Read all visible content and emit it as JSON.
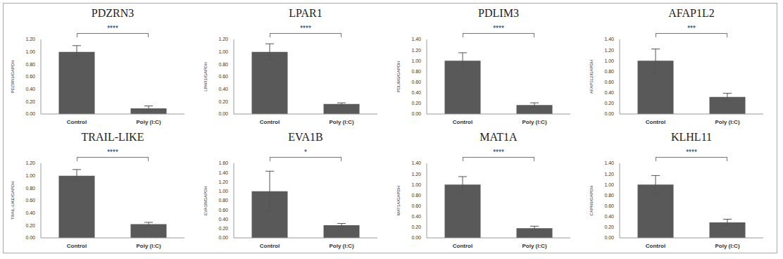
{
  "chart_data": [
    {
      "type": "bar",
      "title": "PDZRN3",
      "ylabel": "PDZRN3/GAPDH",
      "categories": [
        "Control",
        "Poly (I:C)"
      ],
      "values": [
        1.0,
        0.09
      ],
      "errors": [
        0.1,
        0.04
      ],
      "significance": "****",
      "color": "#595959",
      "ylim": [
        0,
        1.2
      ],
      "yticks": [
        {
          "value": 0,
          "label": "0.00"
        },
        {
          "value": 0.2,
          "label": "0.20"
        },
        {
          "value": 0.4,
          "label": "0.40"
        },
        {
          "value": 0.6,
          "label": "0.60"
        },
        {
          "value": 0.8,
          "label": "0.80"
        },
        {
          "value": 1.0,
          "label": "1.00"
        },
        {
          "value": 1.2,
          "label": "1.20"
        }
      ]
    },
    {
      "type": "bar",
      "title": "LPAR1",
      "ylabel": "LPAR1/GAPDH",
      "categories": [
        "Control",
        "Poly (I:C)"
      ],
      "values": [
        1.0,
        0.16
      ],
      "errors": [
        0.13,
        0.02
      ],
      "significance": "****",
      "color": "#595959",
      "ylim": [
        0,
        1.2
      ],
      "yticks": [
        {
          "value": 0,
          "label": "0.00"
        },
        {
          "value": 0.2,
          "label": "0.20"
        },
        {
          "value": 0.4,
          "label": "0.40"
        },
        {
          "value": 0.6,
          "label": "0.60"
        },
        {
          "value": 0.8,
          "label": "0.80"
        },
        {
          "value": 1.0,
          "label": "1.00"
        },
        {
          "value": 1.2,
          "label": "1.20"
        }
      ]
    },
    {
      "type": "bar",
      "title": "PDLIM3",
      "ylabel": "PDLIM3/GAPDH",
      "categories": [
        "Control",
        "Poly (I:C)"
      ],
      "values": [
        1.0,
        0.17
      ],
      "errors": [
        0.15,
        0.04
      ],
      "significance": "****",
      "color": "#595959",
      "ylim": [
        0,
        1.4
      ],
      "yticks": [
        {
          "value": 0,
          "label": "0.00"
        },
        {
          "value": 0.2,
          "label": "0.20"
        },
        {
          "value": 0.4,
          "label": "0.40"
        },
        {
          "value": 0.6,
          "label": "0.60"
        },
        {
          "value": 0.8,
          "label": "0.80"
        },
        {
          "value": 1.0,
          "label": "1.00"
        },
        {
          "value": 1.2,
          "label": "1.20"
        },
        {
          "value": 1.4,
          "label": "1.40"
        }
      ]
    },
    {
      "type": "bar",
      "title": "AFAP1L2",
      "ylabel": "AFAP1L2/GAPDH",
      "categories": [
        "Control",
        "Poly (I:C)"
      ],
      "values": [
        1.0,
        0.32
      ],
      "errors": [
        0.22,
        0.07
      ],
      "significance": "***",
      "color": "#595959",
      "ylim": [
        0,
        1.4
      ],
      "yticks": [
        {
          "value": 0,
          "label": "0.00"
        },
        {
          "value": 0.2,
          "label": "0.20"
        },
        {
          "value": 0.4,
          "label": "0.40"
        },
        {
          "value": 0.6,
          "label": "0.60"
        },
        {
          "value": 0.8,
          "label": "0.80"
        },
        {
          "value": 1.0,
          "label": "1.00"
        },
        {
          "value": 1.2,
          "label": "1.20"
        },
        {
          "value": 1.4,
          "label": "1.40"
        }
      ]
    },
    {
      "type": "bar",
      "title": "TRAIL-LIKE",
      "ylabel": "TRAIL-LIKE/GAPDH",
      "categories": [
        "Control",
        "Poly (I:C)"
      ],
      "values": [
        1.0,
        0.22
      ],
      "errors": [
        0.1,
        0.03
      ],
      "significance": "****",
      "color": "#595959",
      "ylim": [
        0,
        1.2
      ],
      "yticks": [
        {
          "value": 0,
          "label": "0.00"
        },
        {
          "value": 0.2,
          "label": "0.20"
        },
        {
          "value": 0.4,
          "label": "0.40"
        },
        {
          "value": 0.6,
          "label": "0.60"
        },
        {
          "value": 0.8,
          "label": "0.80"
        },
        {
          "value": 1.0,
          "label": "1.00"
        },
        {
          "value": 1.2,
          "label": "1.20"
        }
      ]
    },
    {
      "type": "bar",
      "title": "EVA1B",
      "ylabel": "EVA1B/GAPDH",
      "categories": [
        "Control",
        "Poly (I:C)"
      ],
      "values": [
        1.0,
        0.27
      ],
      "errors": [
        0.43,
        0.04
      ],
      "significance": "*",
      "color": "#595959",
      "ylim": [
        0,
        1.6
      ],
      "yticks": [
        {
          "value": 0,
          "label": "0.00"
        },
        {
          "value": 0.2,
          "label": "0.20"
        },
        {
          "value": 0.4,
          "label": "0.40"
        },
        {
          "value": 0.6,
          "label": "0.60"
        },
        {
          "value": 0.8,
          "label": "0.80"
        },
        {
          "value": 1.0,
          "label": "1.00"
        },
        {
          "value": 1.2,
          "label": "1.20"
        },
        {
          "value": 1.4,
          "label": "1.40"
        },
        {
          "value": 1.6,
          "label": "1.60"
        }
      ]
    },
    {
      "type": "bar",
      "title": "MAT1A",
      "ylabel": "MAT1A/GAPDH",
      "categories": [
        "Control",
        "Poly (I:C)"
      ],
      "values": [
        1.0,
        0.18
      ],
      "errors": [
        0.15,
        0.04
      ],
      "significance": "****",
      "color": "#595959",
      "ylim": [
        0,
        1.4
      ],
      "yticks": [
        {
          "value": 0,
          "label": "0.00"
        },
        {
          "value": 0.2,
          "label": "0.20"
        },
        {
          "value": 0.4,
          "label": "0.40"
        },
        {
          "value": 0.6,
          "label": "0.60"
        },
        {
          "value": 0.8,
          "label": "0.80"
        },
        {
          "value": 1.0,
          "label": "1.00"
        },
        {
          "value": 1.2,
          "label": "1.20"
        },
        {
          "value": 1.4,
          "label": "1.40"
        }
      ]
    },
    {
      "type": "bar",
      "title": "KLHL11",
      "ylabel": "CAPN6/GAPDH",
      "categories": [
        "Control",
        "Poly (I:C)"
      ],
      "values": [
        1.0,
        0.29
      ],
      "errors": [
        0.17,
        0.06
      ],
      "significance": "****",
      "color": "#595959",
      "ylim": [
        0,
        1.4
      ],
      "yticks": [
        {
          "value": 0,
          "label": "0.00"
        },
        {
          "value": 0.2,
          "label": "0.20"
        },
        {
          "value": 0.4,
          "label": "0.40"
        },
        {
          "value": 0.6,
          "label": "0.60"
        },
        {
          "value": 0.8,
          "label": "0.80"
        },
        {
          "value": 1.0,
          "label": "1.00"
        },
        {
          "value": 1.2,
          "label": "1.20"
        },
        {
          "value": 1.4,
          "label": "1.40"
        }
      ]
    }
  ]
}
